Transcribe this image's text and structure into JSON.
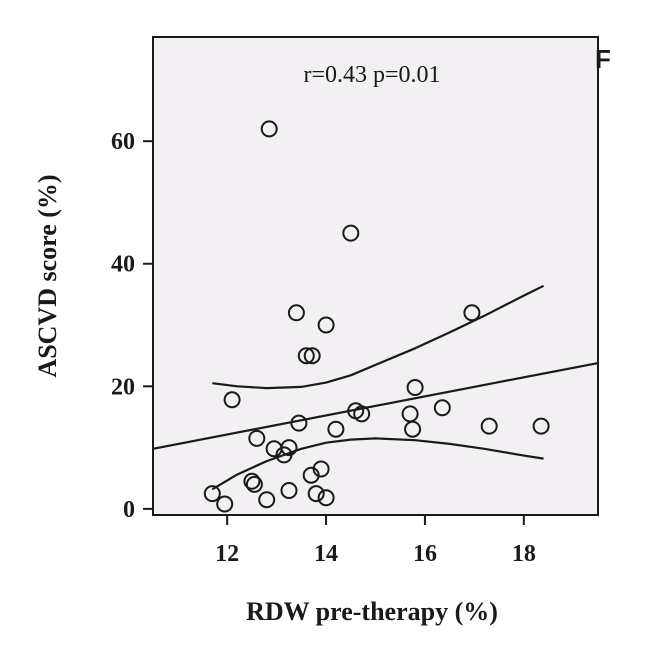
{
  "chart_data": {
    "type": "scatter",
    "title": "",
    "xlabel": "RDW pre-therapy (%)",
    "ylabel": "ASCVD score (%)",
    "annotation": "r=0.43 p=0.01",
    "corner_label": "F",
    "xlim": [
      10.5,
      19.5
    ],
    "ylim": [
      -1,
      77
    ],
    "xticks": [
      12,
      14,
      16,
      18
    ],
    "yticks": [
      0,
      20,
      40,
      60
    ],
    "grid": false,
    "colors": {
      "plot_background": "#f2f0f2",
      "marker_stroke": "#1a1a1a",
      "line": "#1a1a1a",
      "axis": "#1a1a1a"
    },
    "points": [
      {
        "x": 12.85,
        "y": 62
      },
      {
        "x": 14.5,
        "y": 45
      },
      {
        "x": 13.4,
        "y": 32
      },
      {
        "x": 14.0,
        "y": 30
      },
      {
        "x": 16.95,
        "y": 32
      },
      {
        "x": 13.6,
        "y": 25
      },
      {
        "x": 13.72,
        "y": 25
      },
      {
        "x": 15.8,
        "y": 19.8
      },
      {
        "x": 12.1,
        "y": 17.8
      },
      {
        "x": 14.6,
        "y": 16
      },
      {
        "x": 14.72,
        "y": 15.5
      },
      {
        "x": 15.7,
        "y": 15.5
      },
      {
        "x": 16.35,
        "y": 16.5
      },
      {
        "x": 13.45,
        "y": 14
      },
      {
        "x": 14.2,
        "y": 13
      },
      {
        "x": 15.75,
        "y": 13
      },
      {
        "x": 17.3,
        "y": 13.5
      },
      {
        "x": 18.35,
        "y": 13.5
      },
      {
        "x": 12.6,
        "y": 11.5
      },
      {
        "x": 12.95,
        "y": 9.8
      },
      {
        "x": 13.25,
        "y": 10
      },
      {
        "x": 13.15,
        "y": 8.8
      },
      {
        "x": 13.9,
        "y": 6.5
      },
      {
        "x": 13.7,
        "y": 5.5
      },
      {
        "x": 12.5,
        "y": 4.5
      },
      {
        "x": 12.55,
        "y": 4
      },
      {
        "x": 11.7,
        "y": 2.5
      },
      {
        "x": 13.25,
        "y": 3
      },
      {
        "x": 13.8,
        "y": 2.5
      },
      {
        "x": 14.0,
        "y": 1.8
      },
      {
        "x": 12.8,
        "y": 1.5
      },
      {
        "x": 11.95,
        "y": 0.8
      }
    ],
    "fit_line": {
      "x": [
        10.5,
        19.5
      ],
      "y": [
        9.8,
        23.8
      ]
    },
    "ci_upper": {
      "x": [
        11.7,
        12.2,
        12.8,
        13.5,
        14.0,
        14.5,
        15.0,
        15.8,
        16.5,
        17.2,
        18.0,
        18.4
      ],
      "y": [
        20.5,
        20.0,
        19.7,
        19.9,
        20.6,
        21.8,
        23.5,
        26.2,
        28.8,
        31.5,
        34.8,
        36.4
      ]
    },
    "ci_lower": {
      "x": [
        11.7,
        12.2,
        12.8,
        13.5,
        14.0,
        14.5,
        15.0,
        15.8,
        16.5,
        17.2,
        18.0,
        18.4
      ],
      "y": [
        3.2,
        5.6,
        7.8,
        9.8,
        10.8,
        11.3,
        11.5,
        11.2,
        10.6,
        9.8,
        8.7,
        8.2
      ]
    }
  }
}
